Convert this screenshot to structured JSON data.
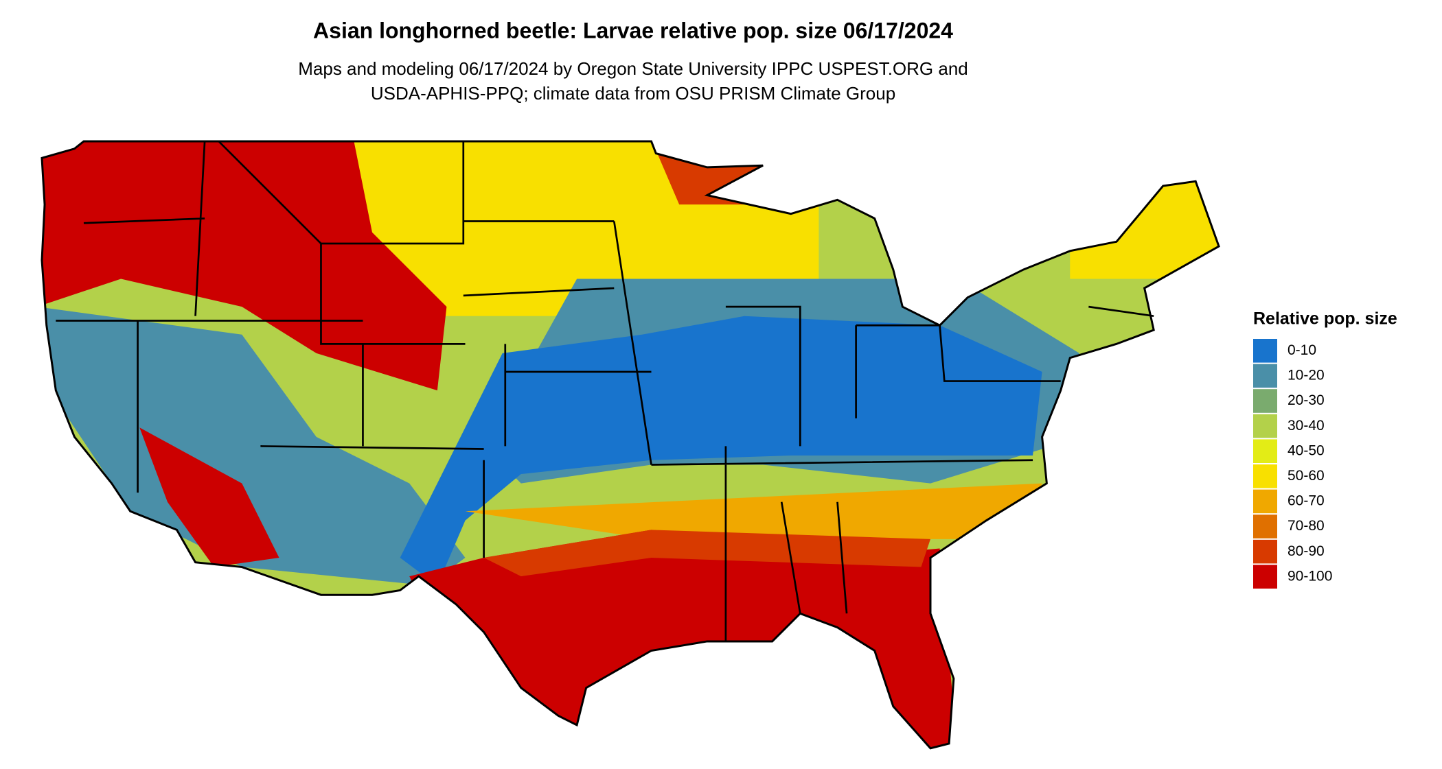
{
  "title": "Asian longhorned beetle: Larvae relative pop. size 06/17/2024",
  "subtitle": [
    "Maps and modeling 06/17/2024 by Oregon State University IPPC USPEST.ORG and",
    "USDA-APHIS-PPQ; climate data from OSU PRISM Climate Group"
  ],
  "legend": {
    "title": "Relative pop. size",
    "items": [
      {
        "label": "0-10",
        "color": "#1874cd"
      },
      {
        "label": "10-20",
        "color": "#4a8fa8"
      },
      {
        "label": "20-30",
        "color": "#7aab6e"
      },
      {
        "label": "30-40",
        "color": "#b3d14a"
      },
      {
        "label": "40-50",
        "color": "#e3ec16"
      },
      {
        "label": "50-60",
        "color": "#f8e000"
      },
      {
        "label": "60-70",
        "color": "#f0a800"
      },
      {
        "label": "70-80",
        "color": "#e07000"
      },
      {
        "label": "80-90",
        "color": "#d83a00"
      },
      {
        "label": "90-100",
        "color": "#cc0000"
      }
    ]
  }
}
